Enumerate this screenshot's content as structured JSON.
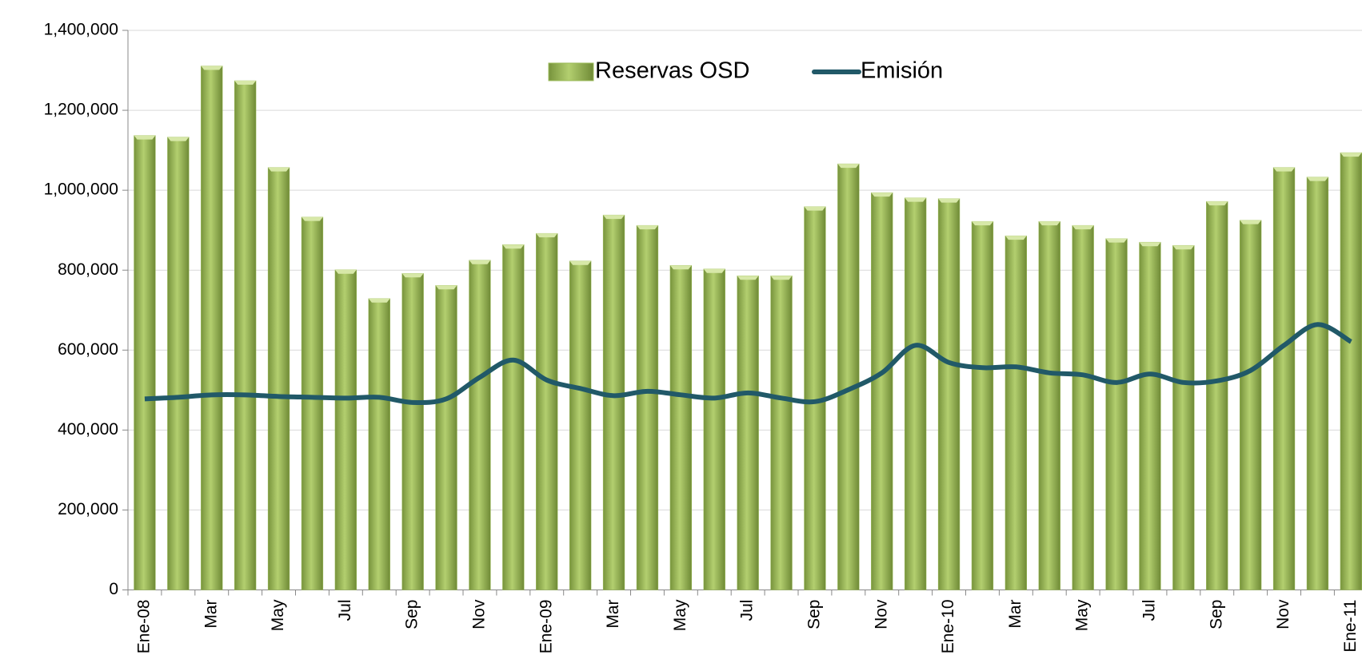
{
  "chart_data": {
    "type": "bar_line",
    "categories": [
      "Ene-08",
      null,
      "Mar",
      null,
      "May",
      null,
      "Jul",
      null,
      "Sep",
      null,
      "Nov",
      null,
      "Ene-09",
      null,
      "Mar",
      null,
      "May",
      null,
      "Jul",
      null,
      "Sep",
      null,
      "Nov",
      null,
      "Ene-10",
      null,
      "Mar",
      null,
      "May",
      null,
      "Jul",
      null,
      "Sep",
      null,
      "Nov",
      null,
      "Ene-11"
    ],
    "series": [
      {
        "name": "Reservas OSD",
        "type": "bar",
        "color": "#9bbb59",
        "values": [
          1137000,
          1133000,
          1311000,
          1274000,
          1057000,
          933000,
          801000,
          729000,
          792000,
          762000,
          825000,
          864000,
          892000,
          823000,
          938000,
          912000,
          812000,
          803000,
          786000,
          786000,
          959000,
          1066000,
          994000,
          981000,
          979000,
          922000,
          886000,
          922000,
          912000,
          879000,
          870000,
          862000,
          972000,
          925000,
          1057000,
          1033000,
          1094000
        ]
      },
      {
        "name": "Emisión",
        "type": "line",
        "color": "#215968",
        "values": [
          478000,
          482000,
          488000,
          488000,
          484000,
          482000,
          480000,
          482000,
          469000,
          478000,
          532000,
          575000,
          525000,
          504000,
          486000,
          497000,
          488000,
          480000,
          493000,
          480000,
          471000,
          501000,
          543000,
          612000,
          569000,
          556000,
          558000,
          543000,
          538000,
          519000,
          540000,
          519000,
          523000,
          549000,
          612000,
          664000,
          621000
        ]
      }
    ],
    "ylim": [
      0,
      1400000
    ],
    "yticks": [
      0,
      {
        "value": 200000,
        "label": "200,000"
      },
      {
        "value": 400000,
        "label": "400,000"
      },
      {
        "value": 600000,
        "label": "600,000"
      },
      {
        "value": 800000,
        "label": "800,000"
      },
      {
        "value": 1000000,
        "label": "1,000,000"
      },
      {
        "value": 1200000,
        "label": "1,200,000"
      },
      {
        "value": 1400000,
        "label": "1,400,000"
      }
    ],
    "grid": true,
    "legend": "top"
  }
}
